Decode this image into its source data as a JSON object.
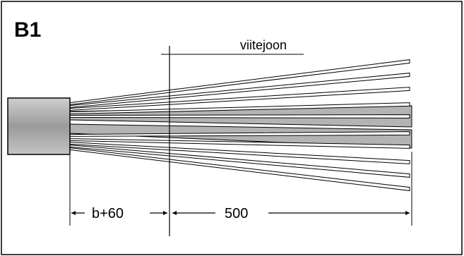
{
  "figure": {
    "title": "B1",
    "reference_line_label": "viitejoon",
    "dim_left_label": "b+60",
    "dim_right_label": "500"
  },
  "colors": {
    "border": "#000000",
    "cable_fill": "#a9a9a9",
    "wire_fill": "#ffffff",
    "wire_band_fill": "#b3b3b3"
  }
}
